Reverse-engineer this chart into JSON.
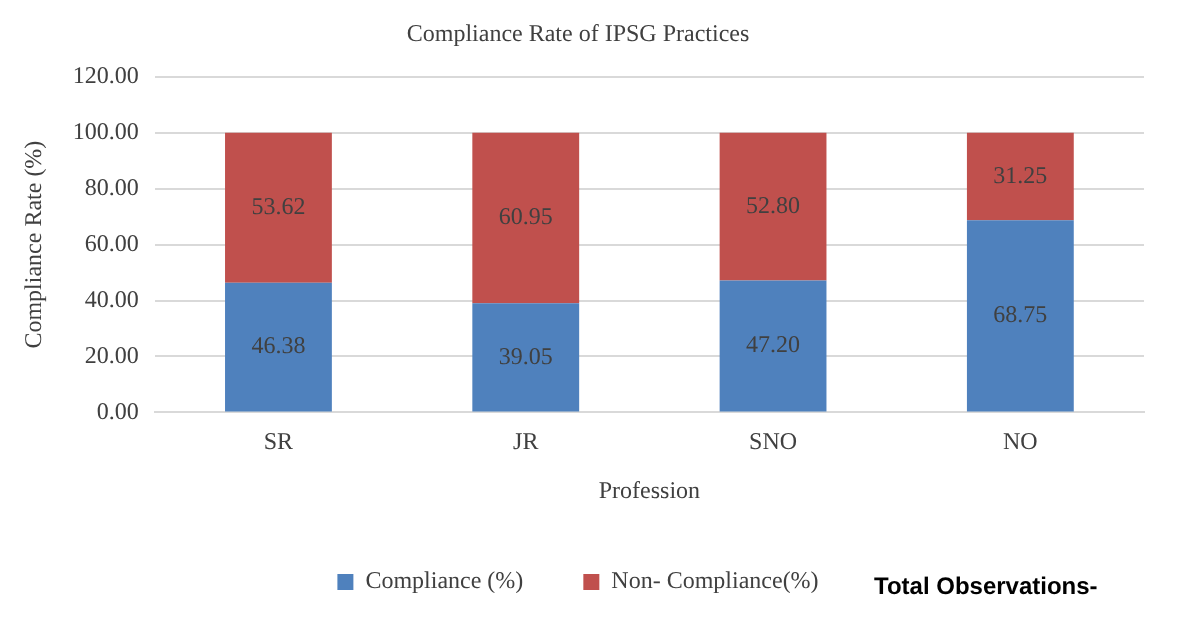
{
  "chart_data": {
    "type": "bar",
    "title": "Compliance Rate of IPSG Practices",
    "xlabel": "Profession",
    "ylabel": "Compliance Rate (%)",
    "categories": [
      "SR",
      "JR",
      "SNO",
      "NO"
    ],
    "series": [
      {
        "name": "Compliance (%)",
        "color": "#4f81bd",
        "values": [
          46.38,
          39.05,
          47.2,
          68.75
        ],
        "value_labels": [
          "46.38",
          "39.05",
          "47.20",
          "68.75"
        ]
      },
      {
        "name": "Non- Compliance(%)",
        "color": "#c0504d",
        "values": [
          53.62,
          60.95,
          52.8,
          31.25
        ],
        "value_labels": [
          "53.62",
          "60.95",
          "52.80",
          "31.25"
        ]
      }
    ],
    "stacked": true,
    "ylim": [
      0,
      120
    ],
    "yticks": [
      {
        "value": 0,
        "label": "0.00"
      },
      {
        "value": 20,
        "label": "20.00"
      },
      {
        "value": 40,
        "label": "40.00"
      },
      {
        "value": 60,
        "label": "60.00"
      },
      {
        "value": 80,
        "label": "80.00"
      },
      {
        "value": 100,
        "label": "100.00"
      },
      {
        "value": 120,
        "label": "120.00"
      }
    ],
    "grid": "y",
    "legend": "bottom",
    "annotations": [
      "Total Observations-"
    ]
  }
}
